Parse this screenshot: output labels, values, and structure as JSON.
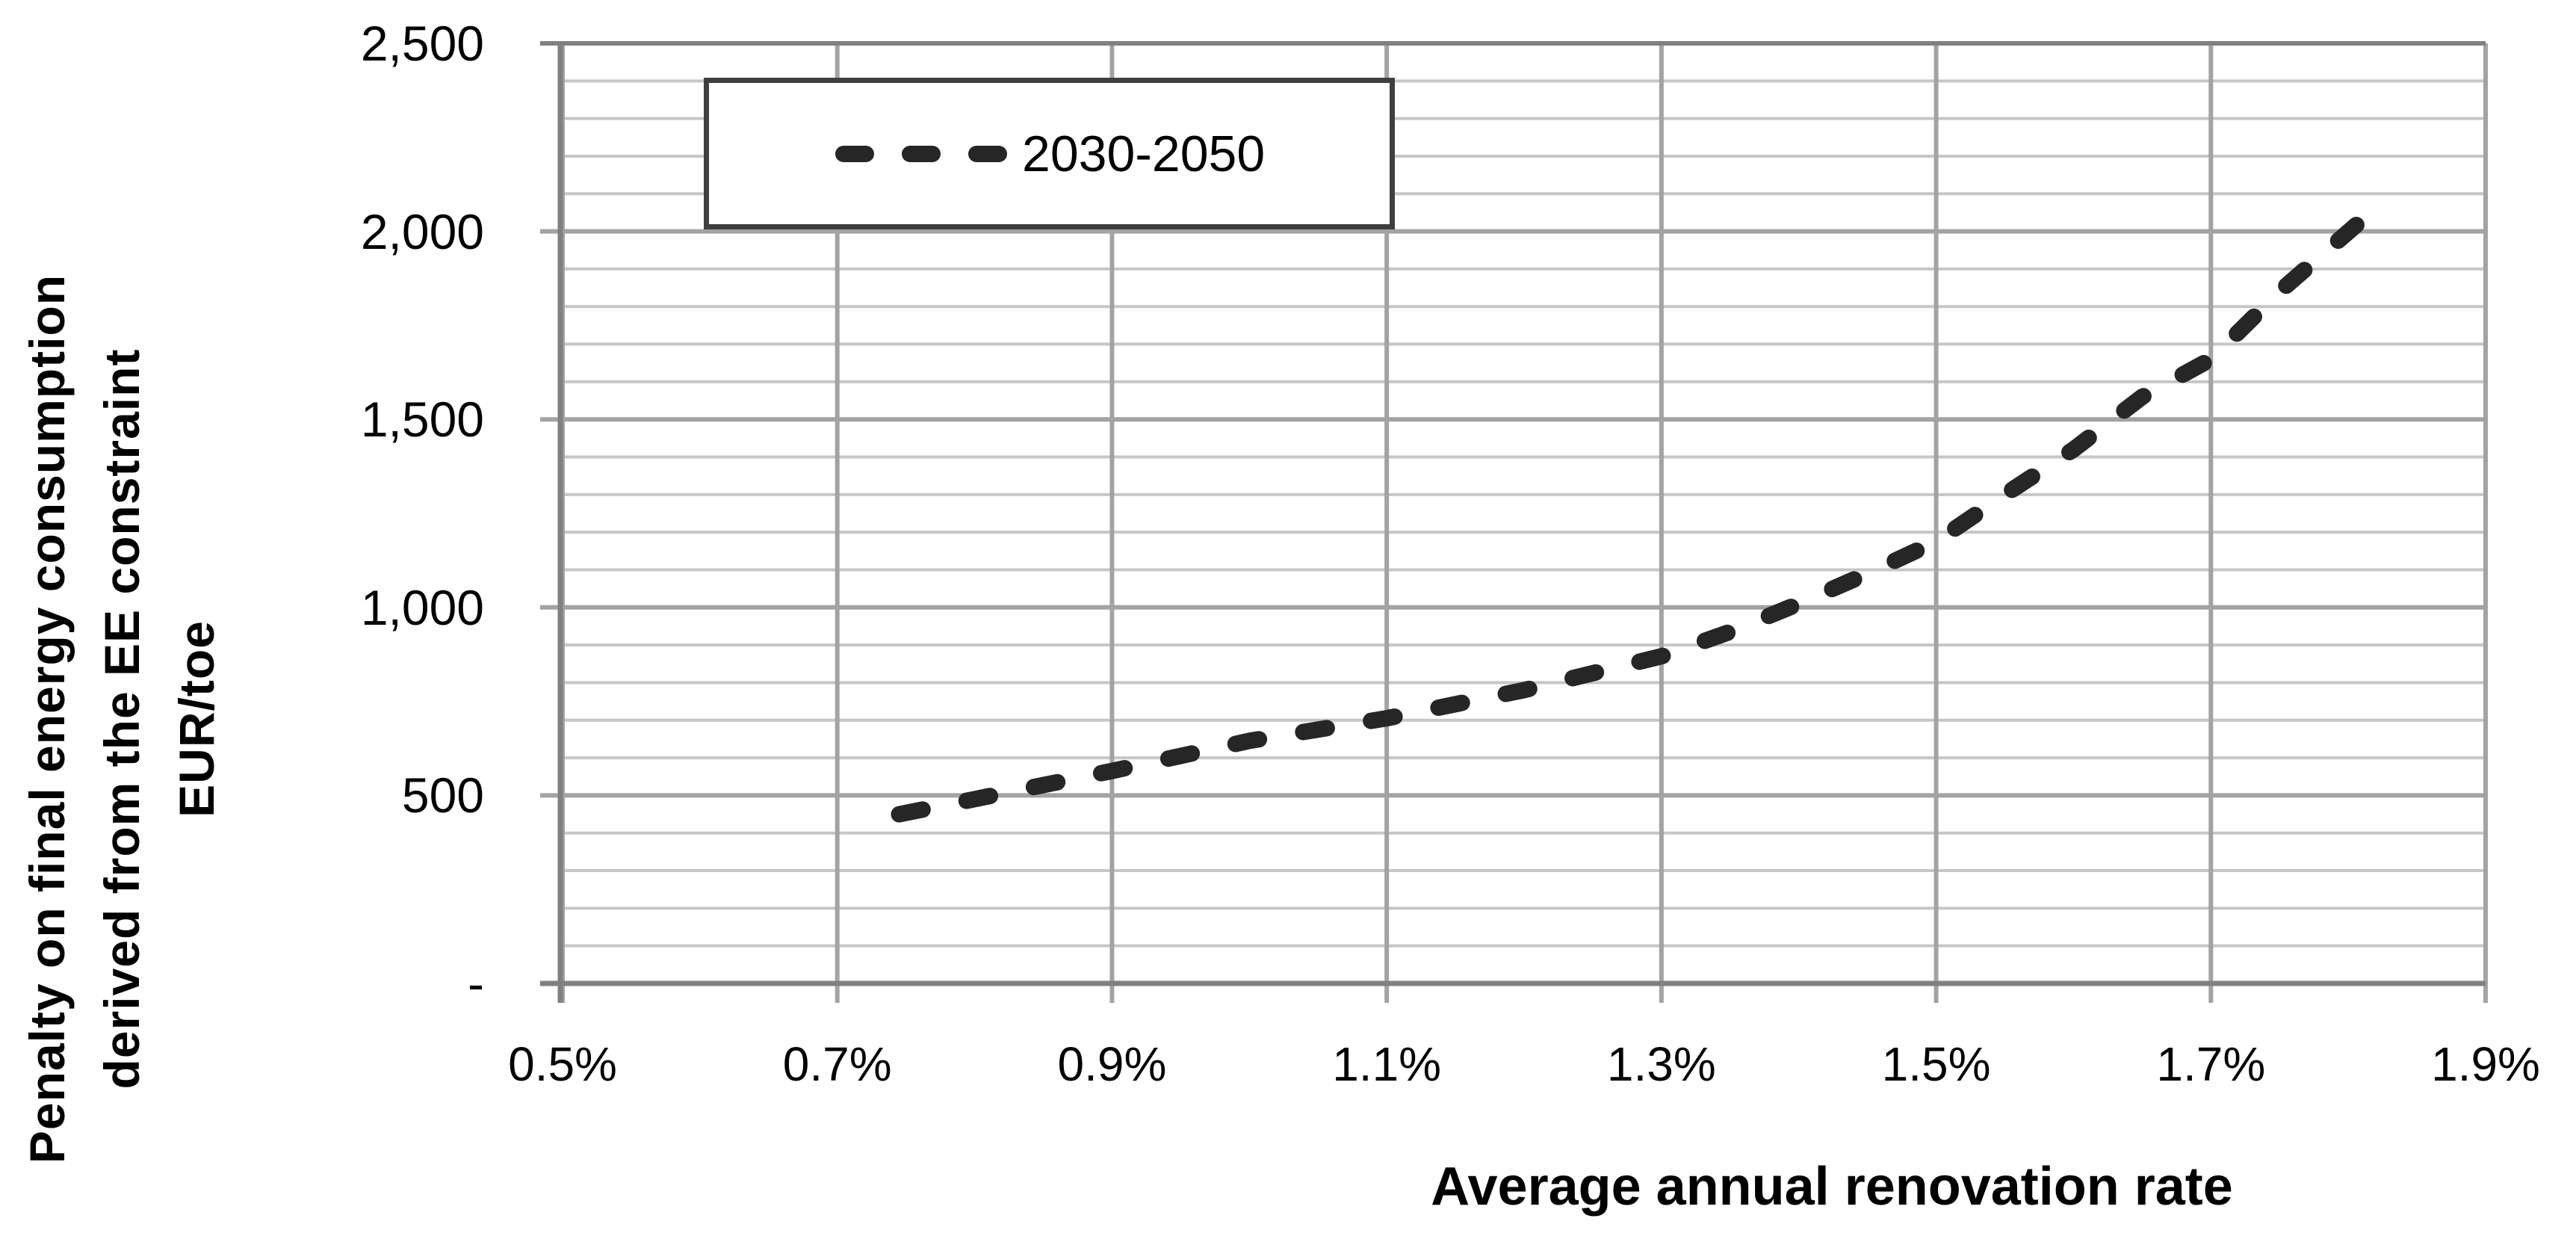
{
  "chart_data": {
    "type": "line",
    "title": "",
    "xlabel": "Average annual renovation rate",
    "ylabel_lines": [
      "Penalty on final energy consumption",
      "derived from the EE constraint",
      "EUR/toe"
    ],
    "legend": {
      "position": "top-left",
      "entries": [
        {
          "label": "2030-2050",
          "line_style": "dashed",
          "color": "#262626"
        }
      ]
    },
    "x_axis": {
      "label": "Average annual renovation rate",
      "min": 0.5,
      "max": 1.9,
      "unit": "%",
      "tick_values": [
        0.5,
        0.7,
        0.9,
        1.1,
        1.3,
        1.5,
        1.7,
        1.9
      ],
      "tick_labels": [
        "0.5%",
        "0.7%",
        "0.9%",
        "1.1%",
        "1.3%",
        "1.5%",
        "1.7%",
        "1.9%"
      ]
    },
    "y_axis": {
      "unit": "EUR/toe",
      "min": 0,
      "max": 2500,
      "major_step": 500,
      "minor_step": 100,
      "tick_values": [
        2500,
        2000,
        1500,
        1000,
        500,
        0
      ],
      "tick_labels": [
        "2,500",
        "2,000",
        "1,500",
        "1,000",
        "500",
        "-"
      ]
    },
    "grid": {
      "minor": true,
      "major": true
    },
    "series": [
      {
        "name": "2030-2050",
        "line_style": "dashed",
        "color": "#262626",
        "x_percent": [
          0.745,
          0.8,
          0.9,
          1.0,
          1.1,
          1.2,
          1.3,
          1.35,
          1.4,
          1.45,
          1.5,
          1.55,
          1.6,
          1.65,
          1.7,
          1.75,
          1.81
        ],
        "y_eur_per_toe": [
          450,
          490,
          565,
          645,
          705,
          780,
          870,
          935,
          1010,
          1090,
          1175,
          1300,
          1420,
          1560,
          1660,
          1840,
          2030
        ]
      }
    ],
    "colors": {
      "minor_gridline": "#c6c6c6",
      "major_gridline": "#a3a3a3",
      "axis_line": "#808080",
      "series_line": "#262626",
      "legend_border": "#3f3f3f",
      "background": "#ffffff"
    }
  }
}
